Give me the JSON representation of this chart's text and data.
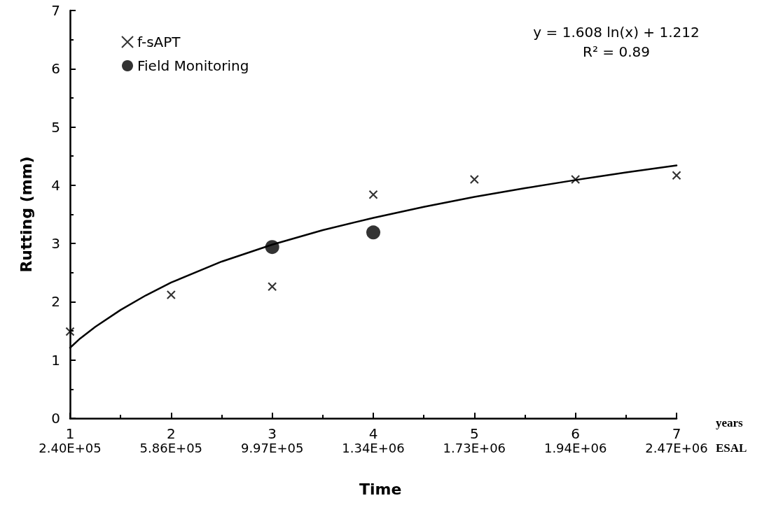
{
  "chart_data": {
    "type": "scatter",
    "xlabel": "Time",
    "ylabel": "Rutting (mm)",
    "annotations": [
      "y = 1.608 ln(x) + 1.212\nR² = 0.89",
      "years",
      "ESAL",
      "2.40E+05",
      "5.86E+05",
      "9.97E+05",
      "1.34E+06",
      "1.73E+06",
      "1.94E+06",
      "2.47E+06"
    ],
    "xlim": [
      1,
      7
    ],
    "xticks": [
      1,
      2,
      3,
      4,
      5,
      6,
      7
    ],
    "ylim": [
      0,
      7
    ],
    "yticks": [
      0,
      1,
      2,
      3,
      4,
      5,
      6,
      7
    ],
    "grid": false,
    "legend": "top left",
    "series": [
      {
        "name": "f-sAPT",
        "marker": "cross",
        "color": "#000000",
        "x": [
          1,
          2,
          3,
          4,
          5,
          6,
          7
        ],
        "values": [
          1.49,
          2.12,
          2.26,
          3.84,
          4.1,
          4.1,
          4.17
        ]
      },
      {
        "name": "Field Monitoring",
        "marker": "circle",
        "color": "#000000",
        "x": [
          3,
          4
        ],
        "values": [
          2.94,
          3.19
        ]
      },
      {
        "type": "line",
        "marker": "none",
        "line_style": "solid",
        "color": "#000000",
        "x": [
          1,
          1.1,
          1.25,
          1.5,
          1.75,
          2,
          2.5,
          3,
          3.5,
          4,
          4.5,
          5,
          5.5,
          6,
          6.5,
          7
        ],
        "values": [
          1.21,
          1.37,
          1.57,
          1.86,
          2.11,
          2.33,
          2.69,
          2.98,
          3.23,
          3.44,
          3.63,
          3.8,
          3.95,
          4.09,
          4.22,
          4.34
        ]
      }
    ]
  }
}
